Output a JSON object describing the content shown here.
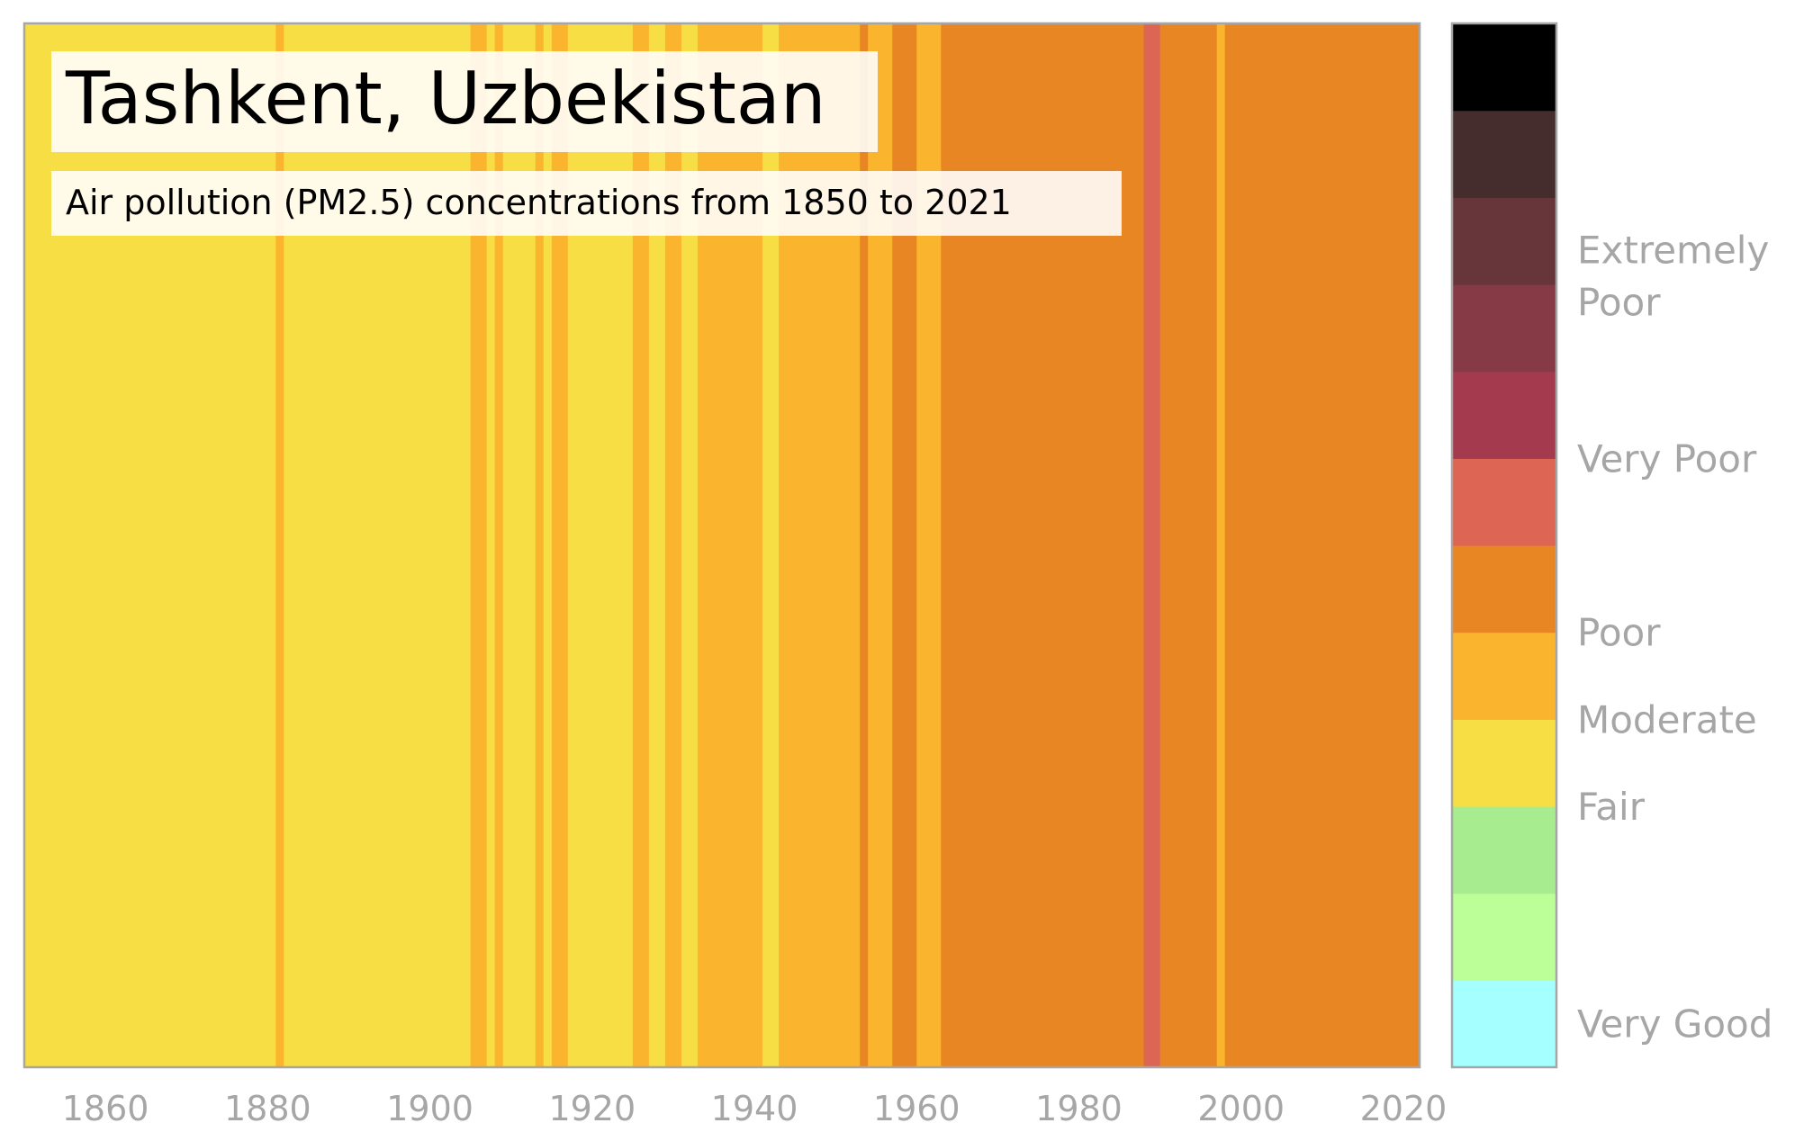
{
  "title": "Tashkent, Uzbekistan",
  "subtitle": "Air pollution (PM2.5) concentrations from 1850 to 2021",
  "chart_data": {
    "type": "heatmap",
    "title": "Tashkent, Uzbekistan",
    "subtitle": "Air pollution (PM2.5) concentrations from 1850 to 2021",
    "xlabel": "",
    "ylabel": "",
    "xlim": [
      1850,
      2022
    ],
    "x_ticks": [
      1860,
      1880,
      1900,
      1920,
      1940,
      1960,
      1980,
      2000,
      2020
    ],
    "x_tick_labels": [
      "1860",
      "1880",
      "1900",
      "1920",
      "1940",
      "1960",
      "1980",
      "2000",
      "2020"
    ],
    "category_order": [
      "fair",
      "moderate",
      "poor",
      "very_poor"
    ],
    "colors": {
      "fair": "#f8de45",
      "moderate": "#fbb42d",
      "poor": "#e88624",
      "very_poor": "#dc6554"
    },
    "periods": [
      {
        "start": 1850,
        "end": 1881,
        "category": "fair"
      },
      {
        "start": 1881,
        "end": 1882,
        "category": "moderate"
      },
      {
        "start": 1882,
        "end": 1905,
        "category": "fair"
      },
      {
        "start": 1905,
        "end": 1907,
        "category": "moderate"
      },
      {
        "start": 1907,
        "end": 1908,
        "category": "fair"
      },
      {
        "start": 1908,
        "end": 1909,
        "category": "moderate"
      },
      {
        "start": 1909,
        "end": 1913,
        "category": "fair"
      },
      {
        "start": 1913,
        "end": 1914,
        "category": "moderate"
      },
      {
        "start": 1914,
        "end": 1915,
        "category": "fair"
      },
      {
        "start": 1915,
        "end": 1917,
        "category": "moderate"
      },
      {
        "start": 1917,
        "end": 1925,
        "category": "fair"
      },
      {
        "start": 1925,
        "end": 1927,
        "category": "moderate"
      },
      {
        "start": 1927,
        "end": 1929,
        "category": "fair"
      },
      {
        "start": 1929,
        "end": 1931,
        "category": "moderate"
      },
      {
        "start": 1931,
        "end": 1933,
        "category": "fair"
      },
      {
        "start": 1933,
        "end": 1941,
        "category": "moderate"
      },
      {
        "start": 1941,
        "end": 1943,
        "category": "fair"
      },
      {
        "start": 1943,
        "end": 1953,
        "category": "moderate"
      },
      {
        "start": 1953,
        "end": 1954,
        "category": "poor"
      },
      {
        "start": 1954,
        "end": 1957,
        "category": "moderate"
      },
      {
        "start": 1957,
        "end": 1960,
        "category": "poor"
      },
      {
        "start": 1960,
        "end": 1963,
        "category": "moderate"
      },
      {
        "start": 1963,
        "end": 1988,
        "category": "poor"
      },
      {
        "start": 1988,
        "end": 1990,
        "category": "very_poor"
      },
      {
        "start": 1990,
        "end": 1997,
        "category": "poor"
      },
      {
        "start": 1997,
        "end": 1998,
        "category": "moderate"
      },
      {
        "start": 1998,
        "end": 2022,
        "category": "poor"
      }
    ],
    "legend": {
      "colors": [
        "#a6ffff",
        "#bcff98",
        "#a7ec8f",
        "#f8de45",
        "#fbb42d",
        "#e88624",
        "#dc6554",
        "#a33a4e",
        "#863a45",
        "#66363a",
        "#452d2e",
        "#000000"
      ],
      "labels": [
        {
          "text": "Very Good",
          "level": 0.5
        },
        {
          "text": "Fair",
          "level": 3.0
        },
        {
          "text": "Moderate",
          "level": 4.0
        },
        {
          "text": "Poor",
          "level": 5.0
        },
        {
          "text": "Very Poor",
          "level": 7.0
        },
        {
          "text": "Extremely",
          "level": 9.4
        },
        {
          "text": "Poor",
          "level": 8.8
        }
      ]
    }
  }
}
